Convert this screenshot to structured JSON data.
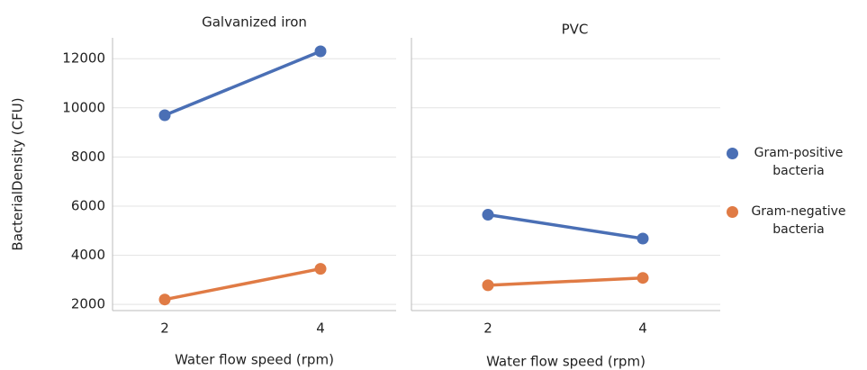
{
  "chart_data": [
    {
      "type": "line",
      "title": "Galvanized iron",
      "y_label": "BacterialDensity (CFU)",
      "x_label": "Water flow speed (rpm)",
      "categories": [
        "2",
        "4"
      ],
      "series": [
        {
          "name": "Gram-positive bacteria",
          "color": "#4a6fb5",
          "values": [
            9700,
            12300
          ]
        },
        {
          "name": "Gram-negative bacteria",
          "color": "#e07b45",
          "values": [
            2200,
            3450
          ]
        }
      ],
      "ylim": [
        1750,
        12850
      ],
      "yticks": [
        2000,
        4000,
        6000,
        8000,
        10000,
        12000
      ],
      "grid": true
    },
    {
      "type": "line",
      "title": "PVC",
      "x_label": "Water flow speed (rpm)",
      "categories": [
        "2",
        "4"
      ],
      "series": [
        {
          "name": "Gram-positive bacteria",
          "color": "#4a6fb5",
          "values": [
            5650,
            4680
          ]
        },
        {
          "name": "Gram-negative bacteria",
          "color": "#e07b45",
          "values": [
            2780,
            3080
          ]
        }
      ],
      "ylim": [
        1750,
        12850
      ],
      "yticks": [
        2000,
        4000,
        6000,
        8000,
        10000,
        12000
      ],
      "grid": true
    }
  ]
}
